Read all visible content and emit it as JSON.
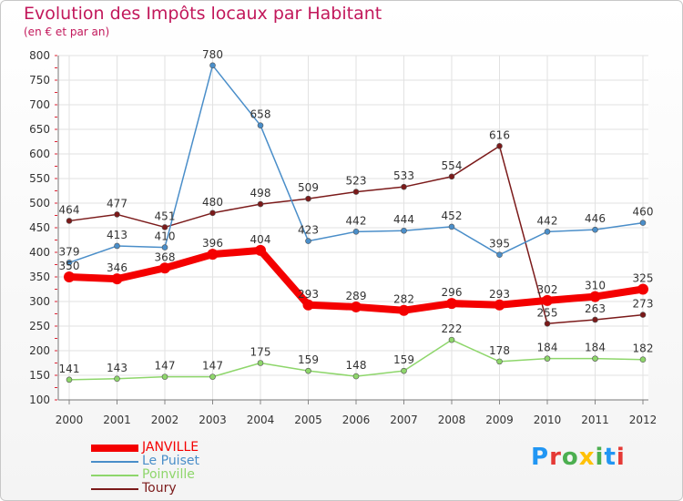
{
  "title": "Evolution des Impôts locaux par Habitant",
  "subtitle": "(en € et par an)",
  "logo": [
    "P",
    "r",
    "o",
    "x",
    "i",
    "t",
    "i"
  ],
  "logo_colors": [
    "#2196f3",
    "#e53935",
    "#4caf50",
    "#ffc107",
    "#4caf50",
    "#2196f3",
    "#e53935"
  ],
  "chart_data": {
    "type": "line",
    "x": [
      "2000",
      "2001",
      "2002",
      "2003",
      "2004",
      "2005",
      "2006",
      "2007",
      "2008",
      "2009",
      "2010",
      "2011",
      "2012"
    ],
    "ylim": [
      100,
      800
    ],
    "yticks": [
      100,
      150,
      200,
      250,
      300,
      350,
      400,
      450,
      500,
      550,
      600,
      650,
      700,
      750,
      800
    ],
    "grid": true,
    "series": [
      {
        "name": "Toury",
        "color": "#7b1a1a",
        "width": 1.5,
        "marker": 3,
        "values": [
          464,
          477,
          451,
          480,
          498,
          509,
          523,
          533,
          554,
          616,
          255,
          263,
          273
        ]
      },
      {
        "name": "Poinville",
        "color": "#8ed66b",
        "width": 1.5,
        "marker": 3,
        "values": [
          141,
          143,
          147,
          147,
          175,
          159,
          148,
          159,
          222,
          178,
          184,
          184,
          182
        ]
      },
      {
        "name": "Le Puiset",
        "color": "#4a8ec9",
        "width": 1.5,
        "marker": 3,
        "values": [
          379,
          413,
          410,
          780,
          658,
          423,
          442,
          444,
          452,
          395,
          442,
          446,
          460
        ]
      },
      {
        "name": "JANVILLE",
        "color": "#f40000",
        "width": 8,
        "marker": 6,
        "values": [
          350,
          346,
          368,
          396,
          404,
          293,
          289,
          282,
          296,
          293,
          302,
          310,
          325
        ]
      }
    ]
  },
  "legend": [
    {
      "name": "JANVILLE",
      "color": "#f40000",
      "thickness": 8
    },
    {
      "name": "Le Puiset",
      "color": "#4a8ec9",
      "thickness": 2
    },
    {
      "name": "Poinville",
      "color": "#8ed66b",
      "thickness": 2
    },
    {
      "name": "Toury",
      "color": "#7b1a1a",
      "thickness": 2
    }
  ]
}
